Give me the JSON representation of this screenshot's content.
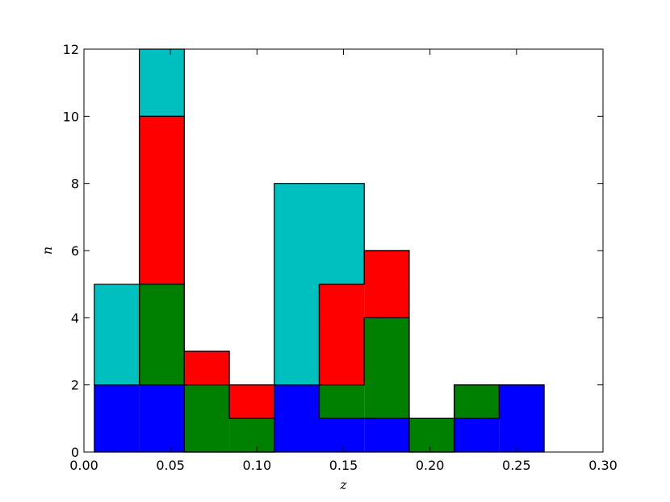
{
  "chart_data": {
    "type": "bar",
    "stacked": true,
    "histogram_step": true,
    "xlabel": "z",
    "ylabel": "n",
    "xlim": [
      0.0,
      0.3
    ],
    "ylim": [
      0,
      12
    ],
    "xticks": [
      "0.00",
      "0.05",
      "0.10",
      "0.15",
      "0.20",
      "0.25",
      "0.30"
    ],
    "yticks": [
      "0",
      "2",
      "4",
      "6",
      "8",
      "10",
      "12"
    ],
    "bin_edges": [
      0.006,
      0.032,
      0.058,
      0.084,
      0.11,
      0.136,
      0.162,
      0.188,
      0.214,
      0.24,
      0.266
    ],
    "grid": false,
    "series": [
      {
        "color": "#0000ff",
        "values": [
          2,
          2,
          0,
          0,
          2,
          1,
          1,
          0,
          1,
          2
        ]
      },
      {
        "color": "#008000",
        "values": [
          0,
          3,
          2,
          1,
          0,
          1,
          3,
          1,
          1,
          0
        ]
      },
      {
        "color": "#ff0000",
        "values": [
          0,
          5,
          1,
          1,
          0,
          3,
          2,
          0,
          0,
          0
        ]
      },
      {
        "color": "#00bfbf",
        "values": [
          3,
          2,
          0,
          0,
          6,
          3,
          0,
          0,
          0,
          0
        ]
      }
    ]
  }
}
